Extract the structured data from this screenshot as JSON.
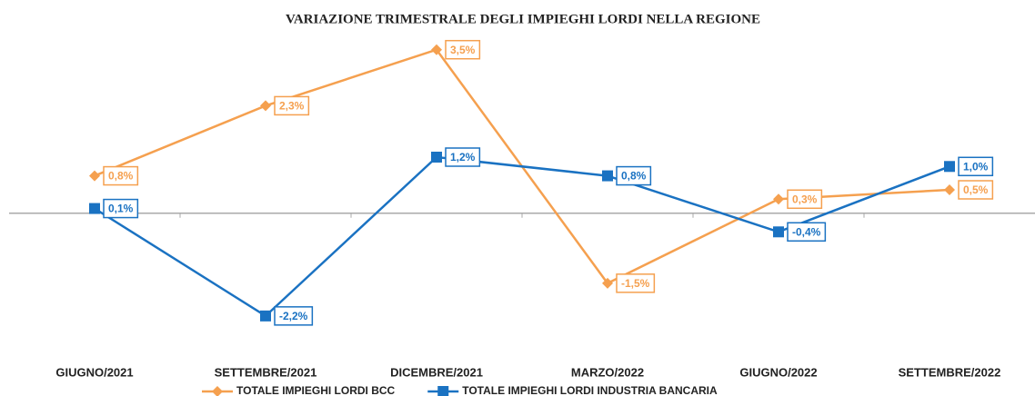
{
  "chart_data": {
    "type": "line",
    "title": "VARIAZIONE TRIMESTRALE DEGLI IMPIEGHI LORDI NELLA REGIONE",
    "categories": [
      "GIUGNO/2021",
      "SETTEMBRE/2021",
      "DICEMBRE/2021",
      "MARZO/2022",
      "GIUGNO/2022",
      "SETTEMBRE/2022"
    ],
    "series": [
      {
        "name": "TOTALE IMPIEGHI LORDI BCC",
        "color": "#f5a04f",
        "marker": "diamond",
        "values": [
          0.8,
          2.3,
          3.5,
          -1.5,
          0.3,
          0.5
        ],
        "value_labels": [
          "0,8%",
          "2,3%",
          "3,5%",
          "-1,5%",
          "0,3%",
          "0,5%"
        ]
      },
      {
        "name": "TOTALE IMPIEGHI LORDI INDUSTRIA BANCARIA",
        "color": "#1a72c2",
        "marker": "square",
        "values": [
          0.1,
          -2.2,
          1.2,
          0.8,
          -0.4,
          1.0
        ],
        "value_labels": [
          "0,1%",
          "-2,2%",
          "1,2%",
          "0,8%",
          "-0,4%",
          "1,0%"
        ]
      }
    ],
    "ylim": [
      -3,
      4
    ]
  }
}
